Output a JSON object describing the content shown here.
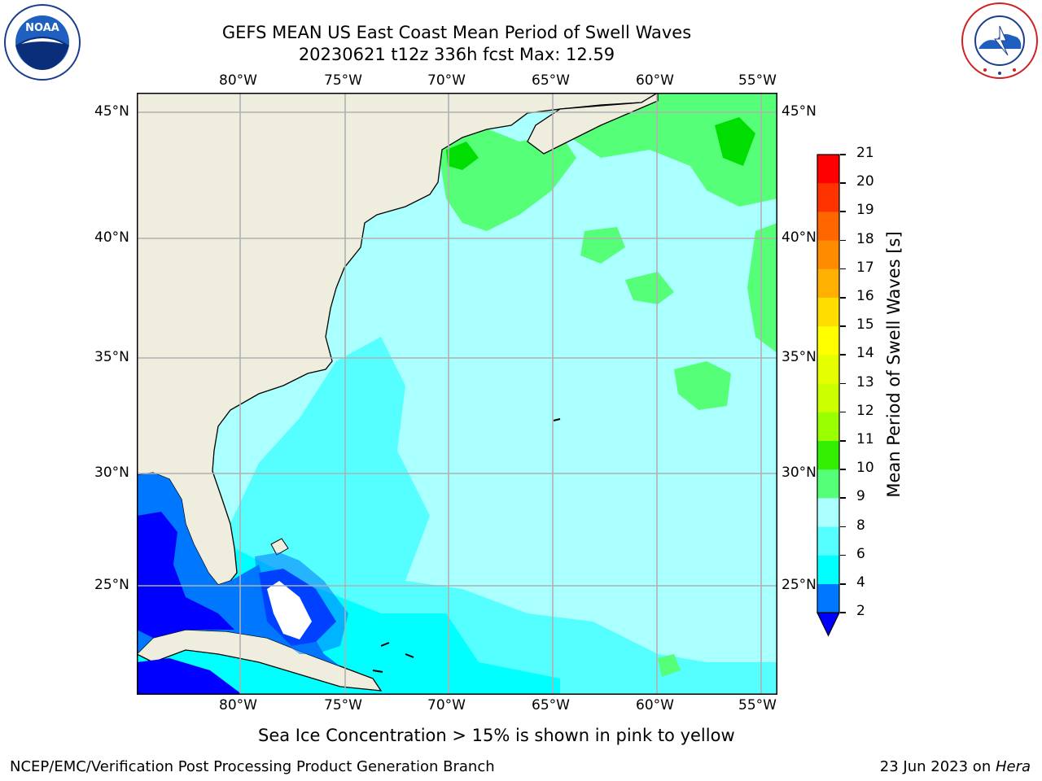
{
  "title": {
    "line1": "GEFS MEAN US East Coast Mean Period of Swell Waves",
    "line2": "20230621 t12z 336h fcst   Max: 12.59"
  },
  "map": {
    "lon_labels": [
      "80°W",
      "75°W",
      "70°W",
      "65°W",
      "60°W",
      "55°W"
    ],
    "lat_labels": [
      "45°N",
      "40°N",
      "35°N",
      "30°N",
      "25°N"
    ],
    "land_color": "#efedde",
    "grid_color": "#b0b0b0"
  },
  "colorbar": {
    "label": "Mean Period of Swell Waves [s]",
    "ticks": [
      "21",
      "20",
      "19",
      "18",
      "17",
      "16",
      "15",
      "14",
      "13",
      "12",
      "11",
      "10",
      "9",
      "8",
      "6",
      "4",
      "2"
    ],
    "colors": [
      "#ff0000",
      "#ff3300",
      "#ff6600",
      "#ff8c00",
      "#ffb000",
      "#ffdd00",
      "#ffff00",
      "#e6ff00",
      "#ccff00",
      "#99ff00",
      "#33ee00",
      "#00dd00",
      "#55ff77",
      "#aaffff",
      "#55ffff",
      "#00ffff",
      "#00ccff",
      "#0077ff",
      "#0000ff"
    ]
  },
  "note": "Sea Ice Concentration > 15% is shown in pink to yellow",
  "footer": {
    "left": "NCEP/EMC/Verification Post Processing Product Generation Branch",
    "right_date": "23 Jun 2023 on ",
    "right_machine": "Hera"
  },
  "logos": {
    "noaa_text": "NOAA",
    "nws_text": "NATIONAL WEATHER SERVICE"
  }
}
